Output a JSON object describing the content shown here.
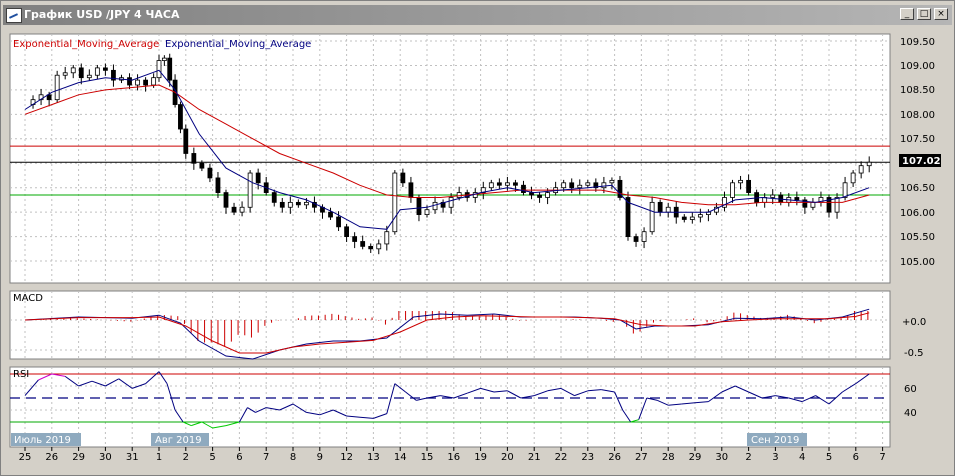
{
  "window": {
    "title": "График USD /JPY  4 ЧАСА",
    "buttons": {
      "minimize": "_",
      "maximize": "□",
      "close": "×"
    }
  },
  "colors": {
    "ema_slow": "#cc0000",
    "ema_fast": "#000080",
    "resistance": "#cc0000",
    "support": "#00aa00",
    "price_line": "#000000",
    "macd_hist": "#cc0000",
    "rsi_line": "#000080",
    "rsi_over": "#cc00cc",
    "rsi_under": "#00cc00",
    "label_bg": "#8faabf"
  },
  "price_panel": {
    "legend": [
      "Exponential_Moving_Average",
      "Exponential_Moving_Average"
    ],
    "y_ticks": [
      "109.50",
      "109.00",
      "108.50",
      "108.00",
      "107.50",
      "107.00",
      "106.50",
      "106.00",
      "105.50",
      "105.00"
    ],
    "current_price": "107.02",
    "resistance": 107.35,
    "support": 106.35
  },
  "macd_panel": {
    "label": "MACD",
    "y_ticks": [
      "+0.0",
      "-0.5"
    ]
  },
  "rsi_panel": {
    "label": "RSI",
    "y_ticks": [
      "60",
      "40"
    ],
    "levels": {
      "over": 70,
      "mid": 50,
      "under": 30
    },
    "month_labels": [
      "Июль 2019",
      "Авг 2019",
      "Сен 2019"
    ]
  },
  "x_axis": {
    "dates": [
      "25",
      "26",
      "29",
      "30",
      "31",
      "1",
      "2",
      "5",
      "6",
      "7",
      "8",
      "9",
      "12",
      "13",
      "14",
      "15",
      "16",
      "19",
      "20",
      "21",
      "22",
      "23",
      "26",
      "27",
      "28",
      "29",
      "30",
      "2",
      "3",
      "4",
      "5",
      "6",
      "7"
    ]
  },
  "chart_data": {
    "type": "candlestick",
    "instrument": "USD/JPY",
    "timeframe": "4H",
    "y_range": [
      104.72,
      109.62
    ],
    "date_labels": [
      "25",
      "26",
      "29",
      "30",
      "31",
      "1",
      "2",
      "5",
      "6",
      "7",
      "8",
      "9",
      "12",
      "13",
      "14",
      "15",
      "16",
      "19",
      "20",
      "21",
      "22",
      "23",
      "26",
      "27",
      "28",
      "29",
      "30",
      "2",
      "3",
      "4",
      "5",
      "6",
      "7"
    ],
    "close_path": [
      [
        0,
        108.2
      ],
      [
        0.3,
        108.3
      ],
      [
        0.6,
        108.4
      ],
      [
        0.9,
        108.3
      ],
      [
        1.2,
        108.8
      ],
      [
        1.5,
        108.85
      ],
      [
        1.8,
        108.95
      ],
      [
        2.1,
        108.75
      ],
      [
        2.4,
        108.8
      ],
      [
        2.7,
        108.95
      ],
      [
        3.0,
        108.9
      ],
      [
        3.3,
        108.7
      ],
      [
        3.6,
        108.75
      ],
      [
        3.9,
        108.6
      ],
      [
        4.2,
        108.7
      ],
      [
        4.5,
        108.6
      ],
      [
        4.8,
        108.75
      ],
      [
        5.0,
        109.1
      ],
      [
        5.2,
        109.15
      ],
      [
        5.4,
        108.7
      ],
      [
        5.6,
        108.2
      ],
      [
        5.8,
        107.7
      ],
      [
        6.0,
        107.2
      ],
      [
        6.3,
        107.0
      ],
      [
        6.6,
        106.9
      ],
      [
        6.9,
        106.7
      ],
      [
        7.2,
        106.4
      ],
      [
        7.5,
        106.1
      ],
      [
        7.8,
        106.0
      ],
      [
        8.1,
        106.1
      ],
      [
        8.4,
        106.8
      ],
      [
        8.7,
        106.6
      ],
      [
        9.0,
        106.4
      ],
      [
        9.3,
        106.2
      ],
      [
        9.6,
        106.1
      ],
      [
        9.9,
        106.2
      ],
      [
        10.2,
        106.15
      ],
      [
        10.5,
        106.2
      ],
      [
        10.8,
        106.1
      ],
      [
        11.1,
        106.0
      ],
      [
        11.4,
        105.9
      ],
      [
        11.7,
        105.7
      ],
      [
        12.0,
        105.5
      ],
      [
        12.3,
        105.4
      ],
      [
        12.6,
        105.3
      ],
      [
        12.9,
        105.25
      ],
      [
        13.2,
        105.35
      ],
      [
        13.5,
        105.6
      ],
      [
        13.8,
        106.8
      ],
      [
        14.1,
        106.6
      ],
      [
        14.4,
        106.3
      ],
      [
        14.7,
        105.95
      ],
      [
        15.0,
        106.05
      ],
      [
        15.3,
        106.2
      ],
      [
        15.6,
        106.1
      ],
      [
        15.9,
        106.3
      ],
      [
        16.2,
        106.4
      ],
      [
        16.5,
        106.3
      ],
      [
        16.8,
        106.4
      ],
      [
        17.1,
        106.5
      ],
      [
        17.4,
        106.6
      ],
      [
        17.7,
        106.55
      ],
      [
        18.0,
        106.6
      ],
      [
        18.3,
        106.55
      ],
      [
        18.6,
        106.4
      ],
      [
        18.9,
        106.35
      ],
      [
        19.2,
        106.3
      ],
      [
        19.5,
        106.4
      ],
      [
        19.8,
        106.5
      ],
      [
        20.1,
        106.6
      ],
      [
        20.4,
        106.5
      ],
      [
        20.7,
        106.55
      ],
      [
        21.0,
        106.6
      ],
      [
        21.3,
        106.5
      ],
      [
        21.6,
        106.6
      ],
      [
        21.9,
        106.65
      ],
      [
        22.2,
        106.3
      ],
      [
        22.5,
        105.5
      ],
      [
        22.8,
        105.4
      ],
      [
        23.1,
        105.6
      ],
      [
        23.4,
        106.2
      ],
      [
        23.7,
        106.0
      ],
      [
        24.0,
        106.1
      ],
      [
        24.3,
        105.9
      ],
      [
        24.6,
        105.85
      ],
      [
        24.9,
        105.9
      ],
      [
        25.2,
        105.95
      ],
      [
        25.5,
        106.0
      ],
      [
        25.8,
        106.1
      ],
      [
        26.1,
        106.3
      ],
      [
        26.4,
        106.6
      ],
      [
        26.7,
        106.65
      ],
      [
        27.0,
        106.4
      ],
      [
        27.3,
        106.2
      ],
      [
        27.6,
        106.3
      ],
      [
        27.9,
        106.35
      ],
      [
        28.2,
        106.2
      ],
      [
        28.5,
        106.3
      ],
      [
        28.8,
        106.25
      ],
      [
        29.1,
        106.1
      ],
      [
        29.4,
        106.2
      ],
      [
        29.7,
        106.3
      ],
      [
        30.0,
        106.0
      ],
      [
        30.3,
        106.3
      ],
      [
        30.6,
        106.6
      ],
      [
        30.9,
        106.8
      ],
      [
        31.2,
        106.95
      ],
      [
        31.5,
        107.02
      ]
    ],
    "ema_fast_path": [
      [
        0,
        108.1
      ],
      [
        1,
        108.45
      ],
      [
        2,
        108.65
      ],
      [
        3,
        108.75
      ],
      [
        4,
        108.7
      ],
      [
        5,
        108.9
      ],
      [
        5.6,
        108.5
      ],
      [
        6.5,
        107.6
      ],
      [
        7.5,
        106.9
      ],
      [
        8.5,
        106.6
      ],
      [
        9.5,
        106.4
      ],
      [
        10.5,
        106.25
      ],
      [
        11.5,
        106.0
      ],
      [
        12.5,
        105.7
      ],
      [
        13.5,
        105.65
      ],
      [
        14.0,
        106.05
      ],
      [
        15.0,
        106.1
      ],
      [
        16.0,
        106.25
      ],
      [
        17.0,
        106.4
      ],
      [
        18.0,
        106.5
      ],
      [
        19.0,
        106.4
      ],
      [
        20.0,
        106.45
      ],
      [
        21.0,
        106.5
      ],
      [
        21.9,
        106.55
      ],
      [
        22.5,
        106.2
      ],
      [
        23.5,
        106.0
      ],
      [
        24.5,
        106.0
      ],
      [
        25.5,
        106.0
      ],
      [
        26.5,
        106.25
      ],
      [
        27.5,
        106.3
      ],
      [
        28.5,
        106.25
      ],
      [
        29.5,
        106.2
      ],
      [
        30.5,
        106.3
      ],
      [
        31.5,
        106.5
      ]
    ],
    "ema_slow_path": [
      [
        0,
        108.0
      ],
      [
        1,
        108.2
      ],
      [
        2,
        108.4
      ],
      [
        3,
        108.5
      ],
      [
        4,
        108.55
      ],
      [
        5,
        108.6
      ],
      [
        5.6,
        108.45
      ],
      [
        6.5,
        108.1
      ],
      [
        7.5,
        107.8
      ],
      [
        8.5,
        107.5
      ],
      [
        9.5,
        107.2
      ],
      [
        10.5,
        107.0
      ],
      [
        11.5,
        106.8
      ],
      [
        12.5,
        106.55
      ],
      [
        13.5,
        106.35
      ],
      [
        14.5,
        106.3
      ],
      [
        15.5,
        106.3
      ],
      [
        16.5,
        106.35
      ],
      [
        17.5,
        106.4
      ],
      [
        18.5,
        106.45
      ],
      [
        19.5,
        106.45
      ],
      [
        20.5,
        106.45
      ],
      [
        21.5,
        106.45
      ],
      [
        22.5,
        106.35
      ],
      [
        23.5,
        106.3
      ],
      [
        24.5,
        106.2
      ],
      [
        25.5,
        106.15
      ],
      [
        26.5,
        106.15
      ],
      [
        27.5,
        106.2
      ],
      [
        28.5,
        106.2
      ],
      [
        29.5,
        106.2
      ],
      [
        30.5,
        106.2
      ],
      [
        31.5,
        106.35
      ]
    ],
    "macd_range": [
      -0.8,
      0.3
    ],
    "macd_path": [
      [
        0,
        0.0
      ],
      [
        2,
        0.05
      ],
      [
        4,
        0.03
      ],
      [
        5,
        0.08
      ],
      [
        5.8,
        -0.05
      ],
      [
        6.5,
        -0.35
      ],
      [
        7.5,
        -0.6
      ],
      [
        8.5,
        -0.65
      ],
      [
        9.5,
        -0.5
      ],
      [
        10.5,
        -0.4
      ],
      [
        11.5,
        -0.35
      ],
      [
        12.5,
        -0.35
      ],
      [
        13.5,
        -0.3
      ],
      [
        14.5,
        0.05
      ],
      [
        15.5,
        0.1
      ],
      [
        16.5,
        0.08
      ],
      [
        17.5,
        0.1
      ],
      [
        18.5,
        0.05
      ],
      [
        19.5,
        0.05
      ],
      [
        20.5,
        0.05
      ],
      [
        21.5,
        0.03
      ],
      [
        22.2,
        0.0
      ],
      [
        22.8,
        -0.15
      ],
      [
        23.5,
        -0.1
      ],
      [
        24.5,
        -0.1
      ],
      [
        25.5,
        -0.08
      ],
      [
        26.5,
        0.03
      ],
      [
        27.5,
        0.02
      ],
      [
        28.5,
        0.05
      ],
      [
        29.5,
        0.0
      ],
      [
        30.5,
        0.05
      ],
      [
        31.5,
        0.18
      ]
    ],
    "macd_signal_path": [
      [
        0,
        0.0
      ],
      [
        2,
        0.04
      ],
      [
        4,
        0.04
      ],
      [
        5,
        0.05
      ],
      [
        6,
        -0.1
      ],
      [
        7,
        -0.35
      ],
      [
        8,
        -0.55
      ],
      [
        9,
        -0.55
      ],
      [
        10,
        -0.45
      ],
      [
        11,
        -0.4
      ],
      [
        12,
        -0.37
      ],
      [
        13,
        -0.34
      ],
      [
        14,
        -0.2
      ],
      [
        15,
        0.0
      ],
      [
        16,
        0.05
      ],
      [
        17,
        0.07
      ],
      [
        18,
        0.06
      ],
      [
        19,
        0.05
      ],
      [
        20,
        0.05
      ],
      [
        21,
        0.04
      ],
      [
        22,
        0.02
      ],
      [
        23,
        -0.08
      ],
      [
        24,
        -0.1
      ],
      [
        25,
        -0.1
      ],
      [
        26,
        -0.03
      ],
      [
        27,
        0.0
      ],
      [
        28,
        0.02
      ],
      [
        29,
        0.02
      ],
      [
        30,
        0.02
      ],
      [
        31,
        0.06
      ],
      [
        31.5,
        0.12
      ]
    ],
    "rsi_path": [
      [
        0,
        52
      ],
      [
        0.5,
        65
      ],
      [
        1,
        70
      ],
      [
        1.5,
        68
      ],
      [
        2,
        60
      ],
      [
        2.5,
        64
      ],
      [
        3,
        60
      ],
      [
        3.5,
        66
      ],
      [
        4,
        58
      ],
      [
        4.5,
        62
      ],
      [
        5.0,
        72
      ],
      [
        5.3,
        62
      ],
      [
        5.6,
        40
      ],
      [
        5.9,
        30
      ],
      [
        6.2,
        27
      ],
      [
        6.6,
        30
      ],
      [
        7.0,
        25
      ],
      [
        7.5,
        27
      ],
      [
        8.0,
        30
      ],
      [
        8.3,
        42
      ],
      [
        8.6,
        38
      ],
      [
        9.0,
        42
      ],
      [
        9.5,
        40
      ],
      [
        10.0,
        45
      ],
      [
        10.5,
        38
      ],
      [
        11.0,
        36
      ],
      [
        11.5,
        40
      ],
      [
        12.0,
        35
      ],
      [
        12.5,
        34
      ],
      [
        13.0,
        33
      ],
      [
        13.5,
        37
      ],
      [
        13.8,
        62
      ],
      [
        14.2,
        55
      ],
      [
        14.6,
        48
      ],
      [
        15.0,
        50
      ],
      [
        15.5,
        52
      ],
      [
        16.0,
        50
      ],
      [
        16.5,
        54
      ],
      [
        17.0,
        58
      ],
      [
        17.5,
        55
      ],
      [
        18.0,
        56
      ],
      [
        18.5,
        50
      ],
      [
        19.0,
        52
      ],
      [
        19.5,
        56
      ],
      [
        20.0,
        58
      ],
      [
        20.5,
        52
      ],
      [
        21.0,
        56
      ],
      [
        21.5,
        57
      ],
      [
        22.0,
        55
      ],
      [
        22.3,
        40
      ],
      [
        22.6,
        30
      ],
      [
        22.9,
        32
      ],
      [
        23.2,
        50
      ],
      [
        23.6,
        48
      ],
      [
        24.0,
        44
      ],
      [
        24.5,
        45
      ],
      [
        25.0,
        46
      ],
      [
        25.5,
        47
      ],
      [
        26.0,
        55
      ],
      [
        26.5,
        60
      ],
      [
        27.0,
        55
      ],
      [
        27.5,
        50
      ],
      [
        28.0,
        52
      ],
      [
        28.5,
        50
      ],
      [
        29.0,
        47
      ],
      [
        29.5,
        52
      ],
      [
        30.0,
        45
      ],
      [
        30.5,
        55
      ],
      [
        31.0,
        62
      ],
      [
        31.5,
        70
      ]
    ]
  }
}
